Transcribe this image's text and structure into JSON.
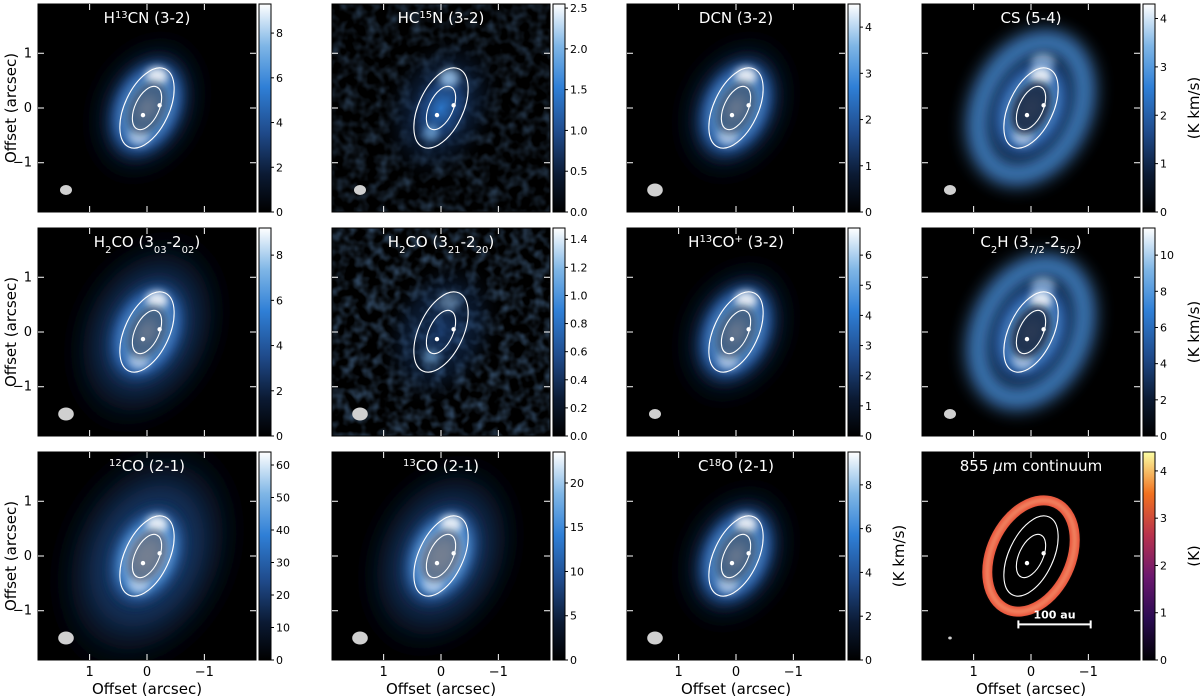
{
  "figure": {
    "ylabel": "Offset (arcsec)",
    "xlabel": "Offset (arcsec)",
    "cbar_unit": "(K km/s)",
    "continuum_unit": "(K)",
    "scale_bar_label": "100 au"
  },
  "chart_data": [
    {
      "type": "heatmap",
      "title": "H13CN (3-2)",
      "title_html": [
        "H",
        "13",
        "CN (3-2)"
      ],
      "colormap": "blue",
      "vmin": 0,
      "vmax": 9.3,
      "cbar_ticks": [
        0,
        2,
        4,
        6,
        8
      ],
      "unit": "",
      "emission": "ring",
      "beam_scale": 1.0
    },
    {
      "type": "heatmap",
      "title": "HC15N (3-2)",
      "title_html": [
        "HC",
        "15",
        "N (3-2)"
      ],
      "colormap": "blue",
      "vmin": 0,
      "vmax": 2.55,
      "cbar_ticks": [
        0.0,
        0.5,
        1.0,
        1.5,
        2.0,
        2.5
      ],
      "unit": "",
      "emission": "noisy",
      "beam_scale": 1.0
    },
    {
      "type": "heatmap",
      "title": "DCN (3-2)",
      "colormap": "blue",
      "vmin": 0,
      "vmax": 4.5,
      "cbar_ticks": [
        0,
        1,
        2,
        3,
        4
      ],
      "unit": "",
      "emission": "ring",
      "beam_scale": 1.3
    },
    {
      "type": "heatmap",
      "title": "CS (5-4)",
      "colormap": "blue",
      "vmin": 0,
      "vmax": 4.3,
      "cbar_ticks": [
        0,
        1,
        2,
        3,
        4
      ],
      "unit": "(K km/s)",
      "emission": "wide",
      "beam_scale": 1.0
    },
    {
      "type": "heatmap",
      "title": "H2CO (303-202)",
      "colormap": "blue",
      "vmin": 0,
      "vmax": 9.2,
      "cbar_ticks": [
        0,
        2,
        4,
        6,
        8
      ],
      "unit": "",
      "emission": "broad",
      "beam_scale": 1.3
    },
    {
      "type": "heatmap",
      "title": "H2CO (321-220)",
      "colormap": "blue",
      "vmin": 0,
      "vmax": 1.48,
      "cbar_ticks": [
        0.0,
        0.2,
        0.4,
        0.6,
        0.8,
        1.0,
        1.2,
        1.4
      ],
      "unit": "",
      "emission": "faint",
      "beam_scale": 1.3
    },
    {
      "type": "heatmap",
      "title": "H13CO+ (3-2)",
      "colormap": "blue",
      "vmin": 0,
      "vmax": 6.9,
      "cbar_ticks": [
        0,
        1,
        2,
        3,
        4,
        5,
        6
      ],
      "unit": "",
      "emission": "ring",
      "beam_scale": 1.0
    },
    {
      "type": "heatmap",
      "title": "C2H (37/2-25/2)",
      "colormap": "blue",
      "vmin": 0,
      "vmax": 11.5,
      "cbar_ticks": [
        0,
        2,
        4,
        6,
        8,
        10
      ],
      "unit": "(K km/s)",
      "emission": "wide",
      "beam_scale": 1.0
    },
    {
      "type": "heatmap",
      "title": "12CO (2-1)",
      "title_html": [
        "",
        "12",
        "CO (2-1)"
      ],
      "colormap": "blue",
      "vmin": 0,
      "vmax": 64,
      "cbar_ticks": [
        0,
        10,
        20,
        30,
        40,
        50,
        60
      ],
      "unit": "",
      "emission": "bright",
      "beam_scale": 1.3
    },
    {
      "type": "heatmap",
      "title": "13CO (2-1)",
      "title_html": [
        "",
        "13",
        "CO (2-1)"
      ],
      "colormap": "blue",
      "vmin": 0,
      "vmax": 23.5,
      "cbar_ticks": [
        0,
        5,
        10,
        15,
        20
      ],
      "unit": "",
      "emission": "bright2",
      "beam_scale": 1.3
    },
    {
      "type": "heatmap",
      "title": "C18O (2-1)",
      "title_html": [
        "C",
        "18",
        "O (2-1)"
      ],
      "colormap": "blue",
      "vmin": 0,
      "vmax": 9.5,
      "cbar_ticks": [
        0,
        2,
        4,
        6,
        8
      ],
      "unit": "(K km/s)",
      "emission": "ring",
      "beam_scale": 1.3
    },
    {
      "type": "heatmap",
      "title": "855 μm continuum",
      "colormap": "inferno",
      "vmin": 0,
      "vmax": 4.4,
      "cbar_ticks": [
        0,
        1,
        2,
        3,
        4
      ],
      "unit": "(K)",
      "emission": "continuum",
      "beam_scale": 0.3
    }
  ],
  "axes": {
    "x_ticks": [
      "1",
      "0",
      "−1"
    ],
    "x_values": [
      1,
      0,
      -1
    ],
    "y_ticks": [
      "1",
      "0",
      "−1"
    ],
    "y_values": [
      1,
      0,
      -1
    ],
    "range": [
      1.9,
      -1.9
    ]
  }
}
